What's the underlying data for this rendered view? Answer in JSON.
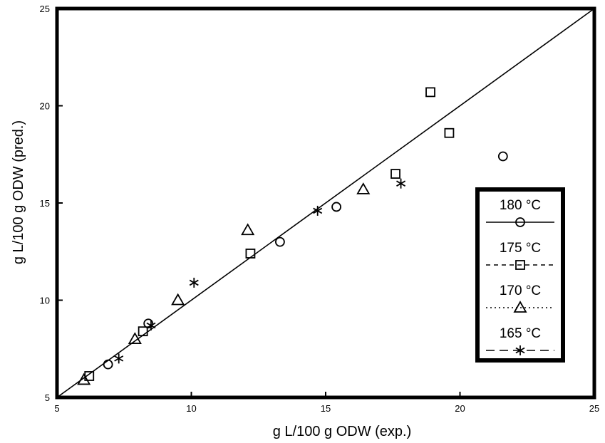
{
  "chart_data": {
    "type": "scatter",
    "title": "",
    "xlabel": "g L/100 g ODW   (exp.)",
    "ylabel": "g L/100 g ODW   (pred.)",
    "xlim": [
      5,
      25
    ],
    "ylim": [
      5,
      25
    ],
    "xticks": [
      5,
      10,
      15,
      20,
      25
    ],
    "yticks": [
      5,
      10,
      15,
      20,
      25
    ],
    "grid": false,
    "legend_position": "right",
    "reference_line": {
      "from": [
        5,
        5
      ],
      "to": [
        25,
        25
      ]
    },
    "series": [
      {
        "name": "180 °C",
        "marker": "circle",
        "line_style": "solid",
        "points": [
          [
            6.9,
            6.7
          ],
          [
            8.4,
            8.8
          ],
          [
            13.3,
            13.0
          ],
          [
            15.4,
            14.8
          ],
          [
            21.6,
            17.4
          ]
        ]
      },
      {
        "name": "175 °C",
        "marker": "square",
        "line_style": "dashed",
        "points": [
          [
            6.2,
            6.1
          ],
          [
            8.2,
            8.4
          ],
          [
            12.2,
            12.4
          ],
          [
            17.6,
            16.5
          ],
          [
            18.9,
            20.7
          ],
          [
            19.6,
            18.6
          ]
        ]
      },
      {
        "name": "170 °C",
        "marker": "triangle",
        "line_style": "dotted",
        "points": [
          [
            6.0,
            5.9
          ],
          [
            7.9,
            8.0
          ],
          [
            9.5,
            10.0
          ],
          [
            12.1,
            13.6
          ],
          [
            16.4,
            15.7
          ]
        ]
      },
      {
        "name": "165 °C",
        "marker": "star",
        "line_style": "longdash",
        "points": [
          [
            7.3,
            7.0
          ],
          [
            8.5,
            8.7
          ],
          [
            10.1,
            10.9
          ],
          [
            14.7,
            14.6
          ],
          [
            17.8,
            16.0
          ]
        ]
      }
    ]
  }
}
